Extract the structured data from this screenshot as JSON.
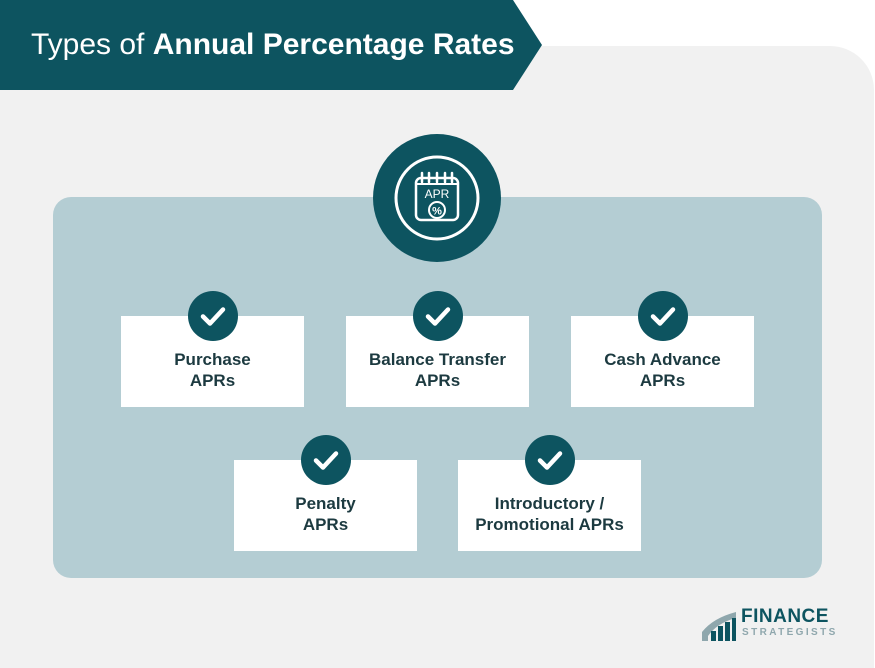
{
  "title": {
    "light": "Types of ",
    "bold": "Annual Percentage Rates"
  },
  "badge": {
    "icon": "apr-calendar-icon",
    "label": "APR",
    "symbol": "%"
  },
  "cards": [
    {
      "line1": "Purchase",
      "line2": "APRs",
      "icon": "checkmark-icon"
    },
    {
      "line1": "Balance Transfer",
      "line2": "APRs",
      "icon": "checkmark-icon"
    },
    {
      "line1": "Cash Advance",
      "line2": "APRs",
      "icon": "checkmark-icon"
    },
    {
      "line1": "Penalty",
      "line2": "APRs",
      "icon": "checkmark-icon"
    },
    {
      "line1": "Introductory /",
      "line2": "Promotional APRs",
      "icon": "checkmark-icon"
    }
  ],
  "logo": {
    "line1": "FINANCE",
    "line2": "STRATEGISTS"
  },
  "colors": {
    "primary": "#0d5460",
    "panel": "#f1f1f1",
    "inner_panel": "#b4cdd3",
    "card": "#ffffff",
    "card_text": "#1c3a40",
    "logo_secondary": "#8fa7ad"
  }
}
